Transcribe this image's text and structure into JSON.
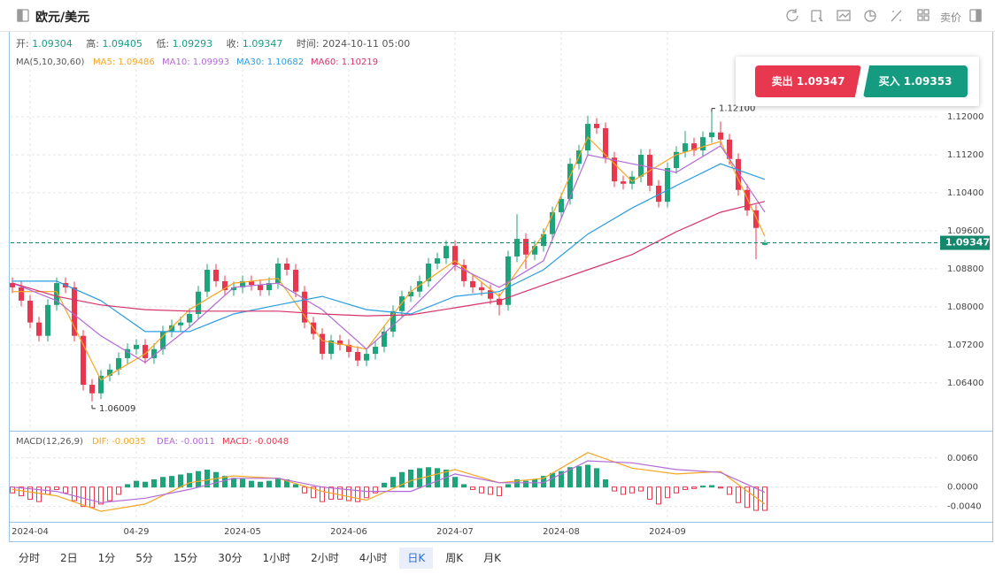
{
  "toolbar": {
    "title": "欧元/美元",
    "price_mode": "卖价"
  },
  "header": {
    "labels": [
      "开:",
      "高:",
      "低:",
      "收:",
      "时间:"
    ],
    "time": "2024-10-11 05:00"
  },
  "trade": {
    "sell": "卖出 1.09347",
    "buy": "买入 1.09353"
  },
  "periods": [
    "分时",
    "2日",
    "1分",
    "5分",
    "15分",
    "30分",
    "1小时",
    "2小时",
    "4小时",
    "日K",
    "周K",
    "月K"
  ],
  "selected_period": 9,
  "chart_data": [
    {
      "type": "candlestick",
      "title": "MA(5,10,30,60)",
      "colors": {
        "up": "#1fa37b",
        "down": "#e8384f"
      },
      "open": [
        1.085,
        1.0841,
        1.0813,
        1.0767,
        1.0739,
        1.0804,
        1.085,
        1.0841,
        1.0739,
        1.0636,
        1.0618,
        1.0655,
        1.0668,
        1.0692,
        1.0711,
        1.072,
        1.0692,
        1.0711,
        1.0748,
        1.0761,
        1.0767,
        1.0785,
        1.0832,
        1.0878,
        1.0854,
        1.0835,
        1.0841,
        1.0854,
        1.0846,
        1.0835,
        1.085,
        1.0891,
        1.0878,
        1.0832,
        1.0767,
        1.0743,
        1.0701,
        1.0729,
        1.072,
        1.0705,
        1.0687,
        1.0701,
        1.0716,
        1.0748,
        1.0791,
        1.0822,
        1.0832,
        1.0854,
        1.0891,
        1.0902,
        1.0928,
        1.0888,
        1.0854,
        1.0841,
        1.0835,
        1.0817,
        1.0804,
        1.0906,
        1.0943,
        1.091,
        1.0928,
        1.0953,
        1.0999,
        1.1027,
        1.1101,
        1.1129,
        1.1185,
        1.1176,
        1.1114,
        1.1064,
        1.1059,
        1.1074,
        1.112,
        1.1055,
        1.1021,
        1.1092,
        1.1126,
        1.1144,
        1.1129,
        1.1157,
        1.1167,
        1.1152,
        1.1111,
        1.1046,
        1.1003,
        1.09304
      ],
      "high": [
        1.0862,
        1.0853,
        1.0825,
        1.0779,
        1.0816,
        1.0862,
        1.0862,
        1.0853,
        1.0751,
        1.0648,
        1.0667,
        1.068,
        1.0704,
        1.0723,
        1.0732,
        1.0732,
        1.0723,
        1.076,
        1.0773,
        1.0779,
        1.0797,
        1.0844,
        1.089,
        1.089,
        1.0866,
        1.0853,
        1.0866,
        1.0866,
        1.0858,
        1.0862,
        1.0903,
        1.0903,
        1.089,
        1.0844,
        1.0779,
        1.0755,
        1.0741,
        1.0741,
        1.0732,
        1.0717,
        1.0713,
        1.0728,
        1.076,
        1.0803,
        1.0834,
        1.0844,
        1.0866,
        1.0903,
        1.0914,
        1.094,
        1.094,
        1.09,
        1.0866,
        1.0853,
        1.0847,
        1.0829,
        1.0918,
        1.0995,
        1.0955,
        1.094,
        1.0965,
        1.1011,
        1.1039,
        1.1113,
        1.1141,
        1.1202,
        1.1197,
        1.1188,
        1.1126,
        1.1076,
        1.1086,
        1.1132,
        1.1132,
        1.1067,
        1.1104,
        1.1138,
        1.117,
        1.1156,
        1.1169,
        1.121,
        1.119,
        1.1164,
        1.1123,
        1.1058,
        1.1015,
        1.09405
      ],
      "low": [
        1.0829,
        1.0801,
        1.0755,
        1.0727,
        1.0727,
        1.0792,
        1.0829,
        1.0727,
        1.0624,
        1.06009,
        1.0606,
        1.0643,
        1.0656,
        1.068,
        1.0699,
        1.068,
        1.068,
        1.0699,
        1.0736,
        1.0749,
        1.0755,
        1.0773,
        1.082,
        1.0842,
        1.0823,
        1.0823,
        1.0829,
        1.0834,
        1.0823,
        1.0823,
        1.0838,
        1.0866,
        1.082,
        1.0755,
        1.0731,
        1.0689,
        1.0689,
        1.0708,
        1.0693,
        1.0675,
        1.0675,
        1.0689,
        1.0704,
        1.0736,
        1.0779,
        1.081,
        1.082,
        1.0842,
        1.0879,
        1.089,
        1.0876,
        1.0842,
        1.0829,
        1.0823,
        1.0805,
        1.0782,
        1.0792,
        1.0894,
        1.088,
        1.0898,
        1.0916,
        1.0941,
        1.0987,
        1.1015,
        1.1089,
        1.1117,
        1.1164,
        1.1102,
        1.1052,
        1.1047,
        1.1047,
        1.1062,
        1.1043,
        1.1009,
        1.1009,
        1.108,
        1.1114,
        1.1117,
        1.1117,
        1.1145,
        1.114,
        1.1099,
        1.1034,
        1.0991,
        1.09,
        1.09293
      ],
      "close": [
        1.0841,
        1.0813,
        1.0767,
        1.0739,
        1.0804,
        1.085,
        1.0841,
        1.0739,
        1.0636,
        1.0618,
        1.0655,
        1.0668,
        1.0692,
        1.0711,
        1.072,
        1.0692,
        1.0711,
        1.0748,
        1.0761,
        1.0767,
        1.0785,
        1.0832,
        1.0878,
        1.0854,
        1.0835,
        1.0841,
        1.0854,
        1.0846,
        1.0835,
        1.085,
        1.0891,
        1.0878,
        1.0832,
        1.0767,
        1.0743,
        1.0701,
        1.0729,
        1.072,
        1.0705,
        1.0687,
        1.0701,
        1.0716,
        1.0748,
        1.0791,
        1.0822,
        1.0832,
        1.0854,
        1.0891,
        1.0902,
        1.0928,
        1.0888,
        1.0854,
        1.0841,
        1.0835,
        1.0817,
        1.0804,
        1.0906,
        1.0943,
        1.091,
        1.0928,
        1.0953,
        1.0999,
        1.1027,
        1.1101,
        1.1129,
        1.1185,
        1.1176,
        1.1114,
        1.1064,
        1.1059,
        1.1074,
        1.112,
        1.1055,
        1.1021,
        1.1092,
        1.1126,
        1.1144,
        1.1129,
        1.1157,
        1.1167,
        1.1152,
        1.1111,
        1.1046,
        1.1003,
        1.0966,
        1.09347
      ],
      "series": [
        {
          "name": "MA5: 1.09486",
          "color": "#f5a623",
          "x": [
            0,
            5,
            10,
            15,
            20,
            25,
            30,
            35,
            40,
            45,
            50,
            55,
            60,
            65,
            70,
            75,
            80,
            85
          ],
          "values": [
            1.0832,
            1.0832,
            1.0646,
            1.0701,
            1.0794,
            1.085,
            1.086,
            1.0729,
            1.0711,
            1.0832,
            1.0897,
            1.0822,
            1.0953,
            1.1157,
            1.1064,
            1.112,
            1.1148,
            1.09486
          ]
        },
        {
          "name": "MA10: 1.09993",
          "color": "#b36ad6",
          "x": [
            0,
            5,
            10,
            15,
            20,
            25,
            30,
            35,
            40,
            45,
            50,
            55,
            60,
            65,
            70,
            75,
            80,
            85
          ],
          "values": [
            1.085,
            1.0813,
            1.0739,
            1.0683,
            1.0757,
            1.0841,
            1.085,
            1.0794,
            1.0711,
            1.0794,
            1.0887,
            1.0841,
            1.0897,
            1.112,
            1.1101,
            1.1083,
            1.1139,
            1.09993
          ]
        },
        {
          "name": "MA30: 1.10682",
          "color": "#2a9de0",
          "x": [
            0,
            5,
            10,
            15,
            20,
            25,
            30,
            35,
            40,
            45,
            50,
            55,
            60,
            65,
            70,
            75,
            80,
            85
          ],
          "values": [
            1.0854,
            1.0854,
            1.0813,
            1.0748,
            1.0748,
            1.0785,
            1.0804,
            1.0822,
            1.0794,
            1.0785,
            1.0822,
            1.0832,
            1.0878,
            1.0953,
            1.1008,
            1.1055,
            1.1101,
            1.10682
          ]
        },
        {
          "name": "MA60: 1.10219",
          "color": "#d6336c",
          "x": [
            0,
            5,
            10,
            15,
            20,
            25,
            30,
            35,
            40,
            45,
            50,
            55,
            60,
            65,
            70,
            75,
            80,
            85
          ],
          "values": [
            1.085,
            1.0822,
            1.0804,
            1.0794,
            1.0791,
            1.0791,
            1.0791,
            1.0785,
            1.0781,
            1.0783,
            1.0798,
            1.0813,
            1.0846,
            1.0878,
            1.091,
            1.0958,
            1.0999,
            1.10219
          ]
        }
      ],
      "annotations": [
        {
          "value": 1.121,
          "label": "1.12100"
        },
        {
          "value": 1.06009,
          "label": "1.06009"
        }
      ],
      "xlim": [
        -0.2,
        104.8
      ],
      "ylim": [
        1.0543,
        1.1334
      ],
      "yticks": [
        {
          "value": 1.12,
          "label": "1.12000"
        },
        {
          "value": 1.112,
          "label": "1.11200"
        },
        {
          "value": 1.104,
          "label": "1.10400"
        },
        {
          "value": 1.096,
          "label": "1.09600"
        },
        {
          "value": 1.088,
          "label": "1.08800"
        },
        {
          "value": 1.08,
          "label": "1.08000"
        },
        {
          "value": 1.072,
          "label": "1.07200"
        },
        {
          "value": 1.064,
          "label": "1.06400"
        }
      ],
      "grid": true
    },
    {
      "type": "macd",
      "title": "MACD(12,26,9)",
      "name": "MACD: -0.0048",
      "colors": {
        "up": "#1fa37b",
        "down": "#e8384f"
      },
      "values": [
        -0.0012,
        -0.0018,
        -0.0025,
        -0.003,
        -0.0015,
        -0.0005,
        -0.0012,
        -0.0028,
        -0.004,
        -0.0042,
        -0.0035,
        -0.0028,
        -0.0015,
        0.0005,
        0.0012,
        0.001,
        0.0015,
        0.002,
        0.0022,
        0.0025,
        0.0028,
        0.0032,
        0.0035,
        0.003,
        0.0022,
        0.0018,
        0.0016,
        0.0012,
        0.001,
        0.0012,
        0.0018,
        0.0015,
        0.0005,
        -0.0012,
        -0.0022,
        -0.003,
        -0.0025,
        -0.0025,
        -0.0028,
        -0.003,
        -0.0022,
        -0.0012,
        0.0008,
        0.002,
        0.003,
        0.0035,
        0.0038,
        0.004,
        0.0038,
        0.0035,
        0.002,
        0.0005,
        -0.0005,
        -0.0012,
        -0.0015,
        -0.0018,
        0.0005,
        0.0015,
        0.0012,
        0.0015,
        0.0022,
        0.0028,
        0.0032,
        0.004,
        0.0042,
        0.0045,
        0.0038,
        0.0015,
        -0.0008,
        -0.0015,
        -0.0012,
        -0.0008,
        -0.0025,
        -0.0035,
        -0.0022,
        -0.0012,
        -0.0005,
        -0.0003,
        0.0002,
        0.0003,
        -0.0002,
        -0.0015,
        -0.0032,
        -0.0042,
        -0.0048,
        -0.0048
      ],
      "series": [
        {
          "name": "DIF: -0.0035",
          "color": "#f5a623",
          "x": [
            0,
            5,
            10,
            15,
            20,
            25,
            30,
            35,
            40,
            45,
            50,
            55,
            60,
            65,
            70,
            75,
            80,
            85
          ],
          "values": [
            -0.0005,
            -0.0018,
            -0.005,
            -0.0035,
            0.0009,
            0.0023,
            0.0018,
            -0.0009,
            -0.0027,
            0.0013,
            0.0036,
            0.0009,
            0.0018,
            0.0071,
            0.0039,
            0.0027,
            0.0032,
            -0.0035
          ]
        },
        {
          "name": "DEA: -0.0011",
          "color": "#b36ad6",
          "x": [
            0,
            5,
            10,
            15,
            20,
            25,
            30,
            35,
            40,
            45,
            50,
            55,
            60,
            65,
            70,
            75,
            80,
            85
          ],
          "values": [
            0,
            -0.0009,
            -0.0032,
            -0.0023,
            -0.0005,
            0.0018,
            0.0018,
            0,
            -0.0009,
            -0.0009,
            0.0027,
            0.0009,
            0.0009,
            0.0054,
            0.005,
            0.0036,
            0.003,
            -0.0011
          ]
        }
      ],
      "xlim": [
        -0.2,
        104.8
      ],
      "ylim": [
        -0.0068,
        0.0107
      ],
      "yticks": [
        {
          "value": 0.006,
          "label": "0.0060"
        },
        {
          "value": 0,
          "label": "0.0000"
        },
        {
          "value": -0.004,
          "label": "-0.0040"
        }
      ],
      "xticks": [
        {
          "value": 2,
          "label": "2024-04"
        },
        {
          "value": 14,
          "label": "04-29"
        },
        {
          "value": 26,
          "label": "2024-05"
        },
        {
          "value": 38,
          "label": "2024-06"
        },
        {
          "value": 50,
          "label": "2024-07"
        },
        {
          "value": 62,
          "label": "2024-08"
        },
        {
          "value": 74,
          "label": "2024-09"
        }
      ],
      "grid": true
    }
  ]
}
